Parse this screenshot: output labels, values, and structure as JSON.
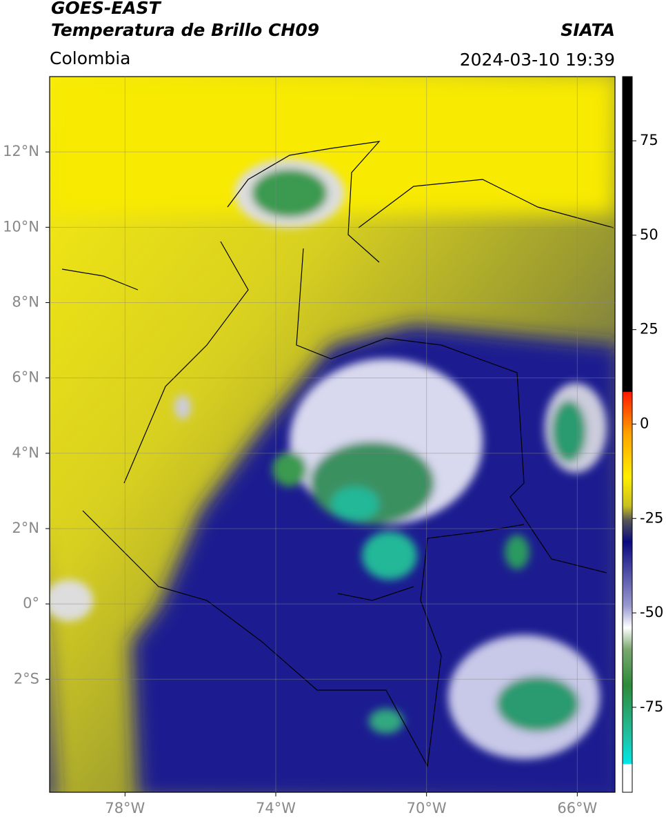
{
  "header": {
    "satellite": "GOES-EAST",
    "product": "Temperatura de Brillo CH09",
    "region": "Colombia",
    "source": "SIATA",
    "datetime": "2024-03-10 19:39"
  },
  "map": {
    "xlim": [
      -80,
      -65
    ],
    "ylim": [
      -5,
      14
    ],
    "xticks": [
      {
        "value": -78,
        "label": "78°W"
      },
      {
        "value": -74,
        "label": "74°W"
      },
      {
        "value": -70,
        "label": "70°W"
      },
      {
        "value": -66,
        "label": "66°W"
      }
    ],
    "yticks": [
      {
        "value": 12,
        "label": "12°N"
      },
      {
        "value": 10,
        "label": "10°N"
      },
      {
        "value": 8,
        "label": "8°N"
      },
      {
        "value": 6,
        "label": "6°N"
      },
      {
        "value": 4,
        "label": "4°N"
      },
      {
        "value": 2,
        "label": "2°N"
      },
      {
        "value": 0,
        "label": "0°"
      },
      {
        "value": -2,
        "label": "2°S"
      }
    ],
    "grid": true
  },
  "colorbar": {
    "lim": [
      -97.5,
      92
    ],
    "ticks": [
      75,
      50,
      25,
      0,
      -25,
      -50,
      -75
    ]
  }
}
